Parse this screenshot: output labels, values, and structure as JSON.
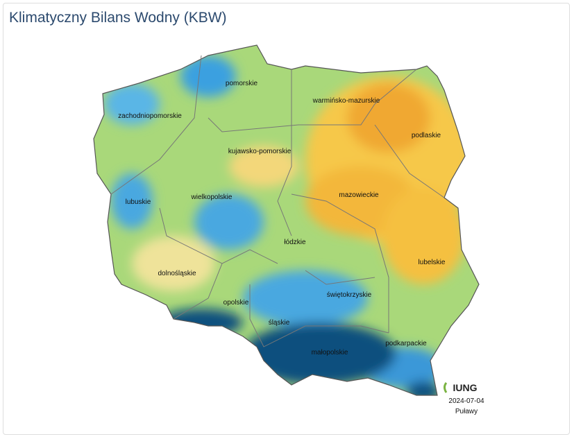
{
  "header": {
    "title": "Klimatyczny Bilans Wodny (KBW)"
  },
  "map": {
    "regions": [
      {
        "label": "pomorskie"
      },
      {
        "label": "zachodniopomorskie"
      },
      {
        "label": "warmińsko-mazurskie"
      },
      {
        "label": "kujawsko-pomorskie"
      },
      {
        "label": "podlaskie"
      },
      {
        "label": "lubuskie"
      },
      {
        "label": "wielkopolskie"
      },
      {
        "label": "mazowieckie"
      },
      {
        "label": "łódzkie"
      },
      {
        "label": "lubelskie"
      },
      {
        "label": "dolnośląskie"
      },
      {
        "label": "opolskie"
      },
      {
        "label": "świętokrzyskie"
      },
      {
        "label": "śląskie"
      },
      {
        "label": "podkarpackie"
      },
      {
        "label": "małopolskie"
      }
    ]
  },
  "footer": {
    "logo": "IUNG",
    "date": "2024-07-04",
    "place": "Puławy"
  }
}
